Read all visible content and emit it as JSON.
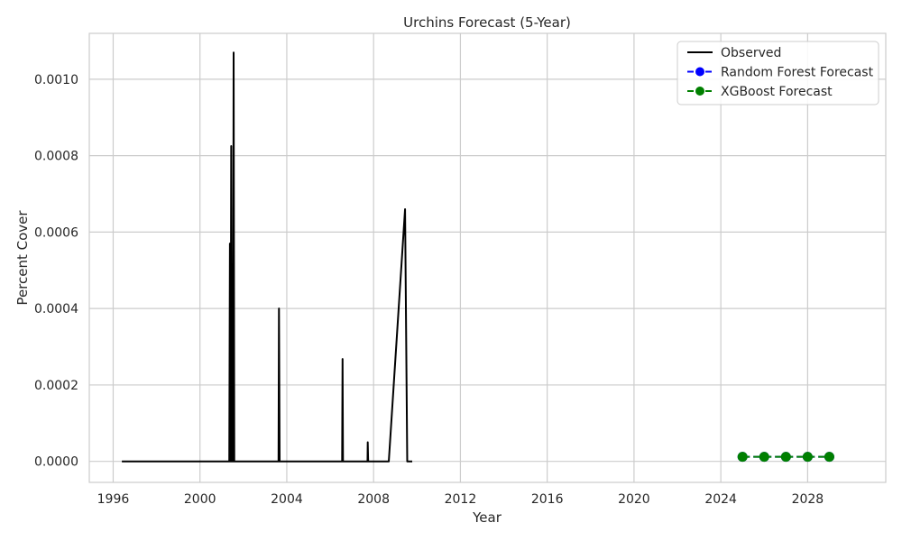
{
  "chart_data": {
    "type": "line",
    "title": "Urchins Forecast (5-Year)",
    "xlabel": "Year",
    "ylabel": "Percent Cover",
    "xlim": [
      1994.9,
      2031.6
    ],
    "ylim": [
      -5.5e-05,
      0.00112
    ],
    "x_ticks": [
      1996,
      2000,
      2004,
      2008,
      2012,
      2016,
      2020,
      2024,
      2028
    ],
    "y_ticks": [
      0.0,
      0.0002,
      0.0004,
      0.0006,
      0.0008,
      0.001
    ],
    "y_tick_labels": [
      "0.0000",
      "0.0002",
      "0.0004",
      "0.0006",
      "0.0008",
      "0.0010"
    ],
    "grid": true,
    "legend_position": "top-right",
    "series": [
      {
        "name": "Observed",
        "color": "#000000",
        "style": "solid",
        "marker": "none",
        "x": [
          1996.4,
          2001.35,
          2001.38,
          2001.41,
          2001.44,
          2001.47,
          2001.52,
          2001.55,
          2001.58,
          2003.62,
          2003.64,
          2003.67,
          2006.55,
          2006.57,
          2006.59,
          2007.72,
          2007.73,
          2007.75,
          2007.76,
          2008.7,
          2009.45,
          2009.55,
          2009.78
        ],
        "y": [
          0.0,
          0.0,
          0.00057,
          0.0,
          0.000825,
          0.0,
          0.0,
          0.00107,
          0.0,
          0.0,
          0.0004,
          0.0,
          0.0,
          0.000268,
          0.0,
          0.0,
          5e-05,
          0.0,
          0.0,
          0.0,
          0.00066,
          0.0,
          0.0
        ]
      },
      {
        "name": "Random Forest Forecast",
        "color": "#0000ff",
        "style": "dashed",
        "marker": "circle",
        "x": [
          2025,
          2026,
          2027,
          2028,
          2029
        ],
        "y": [
          1.19e-05,
          1.19e-05,
          1.19e-05,
          1.19e-05,
          1.19e-05
        ]
      },
      {
        "name": "XGBoost Forecast",
        "color": "#008000",
        "style": "dashed",
        "marker": "circle",
        "x": [
          2025,
          2026,
          2027,
          2028,
          2029
        ],
        "y": [
          1.19e-05,
          1.19e-05,
          1.19e-05,
          1.19e-05,
          1.19e-05
        ]
      }
    ]
  }
}
